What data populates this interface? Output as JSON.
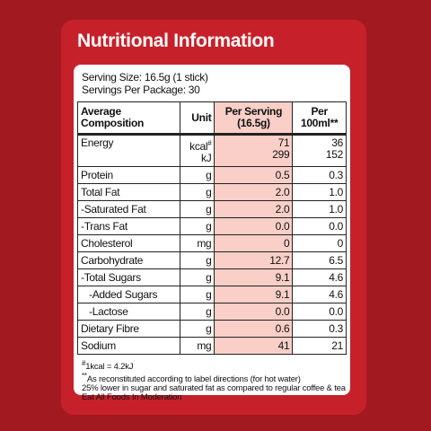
{
  "title": "Nutritional Information",
  "serving_size": "Serving Size: 16.5g (1 stick)",
  "servings_per_package": "Servings Per Package: 30",
  "table": {
    "headers": [
      [
        "Average",
        "Composition"
      ],
      [
        "Unit"
      ],
      [
        "Per Serving",
        "(16.5g)"
      ],
      [
        "Per",
        "100ml**"
      ]
    ],
    "energy": {
      "name": "Energy",
      "units": [
        "kcal",
        "kJ"
      ],
      "unit_note": "#",
      "per_serving": [
        "71",
        "299"
      ],
      "per_100ml": [
        "36",
        "152"
      ]
    },
    "rows": [
      [
        "Protein",
        "g",
        "0.5",
        "0.3"
      ],
      [
        "Total Fat",
        "g",
        "2.0",
        "1.0"
      ],
      [
        "-Saturated Fat",
        "g",
        "2.0",
        "1.0"
      ],
      [
        "-Trans Fat",
        "g",
        "0.0",
        "0.0"
      ],
      [
        "Cholesterol",
        "mg",
        "0",
        "0"
      ],
      [
        "Carbohydrate",
        "g",
        "12.7",
        "6.5"
      ],
      [
        "-Total Sugars",
        "g",
        "9.1",
        "4.6"
      ],
      [
        "-Added Sugars",
        "g",
        "9.1",
        "4.6"
      ],
      [
        "-Lactose",
        "g",
        "0.0",
        "0.0"
      ],
      [
        "Dietary Fibre",
        "g",
        "0.6",
        "0.3"
      ],
      [
        "Sodium",
        "mg",
        "41",
        "21"
      ]
    ]
  },
  "footnotes": [
    {
      "mark": "#",
      "text": "1kcal = 4.2kJ"
    },
    {
      "mark": "**",
      "text": "As reconstituted according to label directions (for hot water)"
    }
  ],
  "notes": [
    "25% lower in sugar and saturated fat as compared to regular coffee & tea",
    "Eat All Foods In Moderation"
  ]
}
